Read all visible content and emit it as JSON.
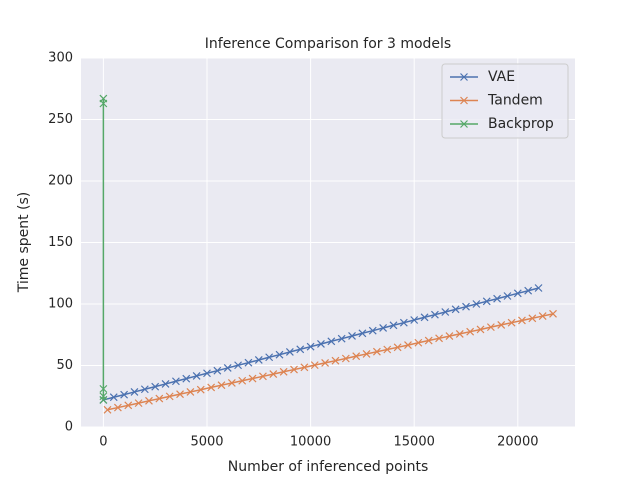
{
  "chart_data": {
    "type": "line",
    "title": "Inference Comparison for 3 models",
    "xlabel": "Number of inferenced points",
    "ylabel": "Time spent (s)",
    "xlim": [
      -1080,
      22760
    ],
    "xticks": [
      0,
      5000,
      10000,
      15000,
      20000
    ],
    "ylim": [
      0,
      300
    ],
    "yticks": [
      0,
      50,
      100,
      150,
      200,
      250,
      300
    ],
    "grid": true,
    "legend": "upper right",
    "marker": "x",
    "series": [
      {
        "name": "VAE",
        "color": "#4c72b0",
        "x": [
          0,
          500,
          1000,
          1500,
          2000,
          2500,
          3000,
          3500,
          4000,
          4500,
          5000,
          5500,
          6000,
          6500,
          7000,
          7500,
          8000,
          8500,
          9000,
          9500,
          10000,
          10500,
          11000,
          11500,
          12000,
          12500,
          13000,
          13500,
          14000,
          14500,
          15000,
          15500,
          16000,
          16500,
          17000,
          17500,
          18000,
          18500,
          19000,
          19500,
          20000,
          20500,
          21000
        ],
        "values": [
          22,
          24.2,
          26.3,
          28.5,
          30.7,
          32.8,
          35,
          37.2,
          39.3,
          41.5,
          43.7,
          45.8,
          48,
          50.2,
          52.3,
          54.5,
          56.7,
          58.8,
          61,
          63.2,
          65.3,
          67.5,
          69.7,
          71.8,
          74,
          76.2,
          78.3,
          80.5,
          82.7,
          84.8,
          87,
          89.2,
          91.3,
          93.5,
          95.7,
          97.8,
          100,
          102.2,
          104.3,
          106.5,
          108.7,
          110.8,
          113
        ]
      },
      {
        "name": "Tandem",
        "color": "#dd8452",
        "x": [
          200,
          700,
          1200,
          1700,
          2200,
          2700,
          3200,
          3700,
          4200,
          4700,
          5200,
          5700,
          6200,
          6700,
          7200,
          7700,
          8200,
          8700,
          9200,
          9700,
          10200,
          10700,
          11200,
          11700,
          12200,
          12700,
          13200,
          13700,
          14200,
          14700,
          15200,
          15700,
          16200,
          16700,
          17200,
          17700,
          18200,
          18700,
          19200,
          19700,
          20200,
          20700,
          21200,
          21700
        ],
        "values": [
          14,
          15.8,
          17.6,
          19.4,
          21.3,
          23.1,
          24.9,
          26.7,
          28.5,
          30.3,
          32.2,
          34,
          35.8,
          37.6,
          39.4,
          41.2,
          43,
          44.9,
          46.7,
          48.5,
          50.3,
          52.1,
          53.9,
          55.7,
          57.6,
          59.4,
          61.2,
          63,
          64.8,
          66.6,
          68.5,
          70.3,
          72.1,
          73.9,
          75.7,
          77.5,
          79.3,
          81.2,
          83,
          84.8,
          86.6,
          88.4,
          90.2,
          92
        ]
      },
      {
        "name": "Backprop",
        "color": "#55a868",
        "x": [
          0,
          0,
          0,
          0,
          0
        ],
        "values": [
          22,
          25,
          31,
          267,
          263
        ]
      }
    ]
  }
}
